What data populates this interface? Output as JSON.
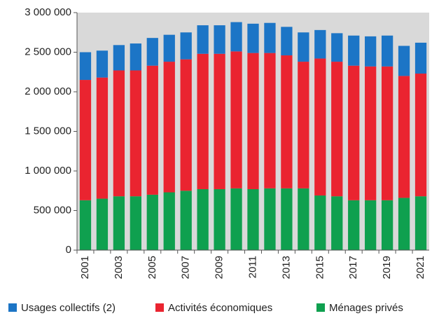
{
  "chart_data": {
    "type": "stacked_bar",
    "categories": [
      "2001",
      null,
      "2003",
      null,
      "2005",
      null,
      "2007",
      null,
      "2009",
      null,
      "2011",
      null,
      "2013",
      null,
      "2015",
      null,
      "2017",
      null,
      "2019",
      null,
      "2021"
    ],
    "series": [
      {
        "name": "Ménages privés",
        "color": "#0fa04f",
        "values": [
          630000,
          650000,
          680000,
          680000,
          700000,
          730000,
          750000,
          770000,
          770000,
          780000,
          770000,
          780000,
          780000,
          780000,
          690000,
          680000,
          630000,
          630000,
          630000,
          660000,
          680000
        ]
      },
      {
        "name": "Activités économiques",
        "color": "#ea2430",
        "values": [
          1520000,
          1530000,
          1590000,
          1590000,
          1630000,
          1650000,
          1660000,
          1710000,
          1710000,
          1730000,
          1720000,
          1710000,
          1680000,
          1600000,
          1730000,
          1700000,
          1700000,
          1690000,
          1690000,
          1540000,
          1550000
        ]
      },
      {
        "name": "Usages collectifs (2)",
        "color": "#1c75c6",
        "values": [
          350000,
          340000,
          320000,
          340000,
          350000,
          340000,
          340000,
          360000,
          360000,
          370000,
          370000,
          380000,
          360000,
          370000,
          360000,
          360000,
          380000,
          380000,
          390000,
          380000,
          390000
        ]
      }
    ],
    "ylim": [
      0,
      3000000
    ],
    "yticks": [
      0,
      {
        "value": 500000,
        "label": "500 000"
      },
      {
        "value": 1000000,
        "label": "1 000 000"
      },
      {
        "value": 1500000,
        "label": "1 500 000"
      },
      {
        "value": 2000000,
        "label": "2 000 000"
      },
      {
        "value": 2500000,
        "label": "2 500 000"
      },
      {
        "value": 3000000,
        "label": "3 000 000"
      }
    ],
    "legend_position": "bottom"
  }
}
